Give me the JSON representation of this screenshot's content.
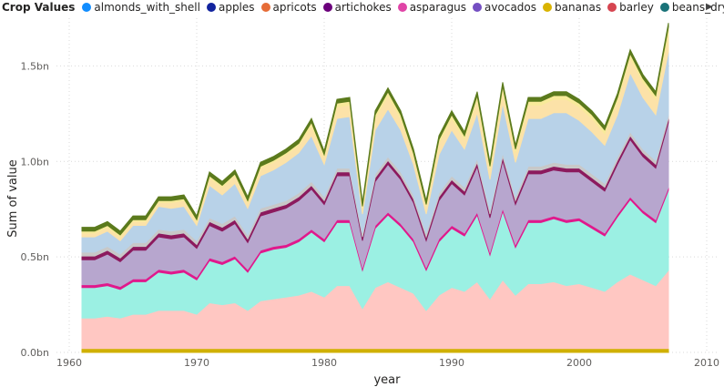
{
  "legend": {
    "title": "Crop Values",
    "items": [
      {
        "label": "almonds_with_shell",
        "color": "#118dff"
      },
      {
        "label": "apples",
        "color": "#12239e"
      },
      {
        "label": "apricots",
        "color": "#e66c37"
      },
      {
        "label": "artichokes",
        "color": "#6b007b"
      },
      {
        "label": "asparagus",
        "color": "#e044a7"
      },
      {
        "label": "avocados",
        "color": "#744ec2"
      },
      {
        "label": "bananas",
        "color": "#d9b300"
      },
      {
        "label": "barley",
        "color": "#d64550"
      },
      {
        "label": "beans_dry",
        "color": "#197278"
      }
    ],
    "more_icon": "triangle-right-icon"
  },
  "chart_data": {
    "type": "area",
    "stacked": true,
    "xlabel": "year",
    "ylabel": "Sum of value",
    "xlim": [
      1959,
      2011
    ],
    "ylim": [
      0,
      1.75
    ],
    "x_ticks": [
      "1960",
      "1970",
      "1980",
      "1990",
      "2000",
      "2010"
    ],
    "y_ticks": [
      "0.0bn",
      "0.5bn",
      "1.0bn",
      "1.5bn"
    ],
    "y_tick_values": [
      0,
      0.5,
      1.0,
      1.5
    ],
    "units": "bn",
    "grid": "dotted",
    "x": [
      1961,
      1962,
      1963,
      1964,
      1965,
      1966,
      1967,
      1968,
      1969,
      1970,
      1971,
      1972,
      1973,
      1974,
      1975,
      1976,
      1977,
      1978,
      1979,
      1980,
      1981,
      1982,
      1983,
      1984,
      1985,
      1986,
      1987,
      1988,
      1989,
      1990,
      1991,
      1992,
      1993,
      1994,
      1995,
      1996,
      1997,
      1998,
      1999,
      2000,
      2001,
      2002,
      2003,
      2004,
      2005,
      2006,
      2007
    ],
    "series": [
      {
        "fill": "#d0b000",
        "values": [
          0.02,
          0.02,
          0.02,
          0.02,
          0.02,
          0.02,
          0.02,
          0.02,
          0.02,
          0.02,
          0.02,
          0.02,
          0.02,
          0.02,
          0.02,
          0.02,
          0.02,
          0.02,
          0.02,
          0.02,
          0.02,
          0.02,
          0.02,
          0.02,
          0.02,
          0.02,
          0.02,
          0.02,
          0.02,
          0.02,
          0.02,
          0.02,
          0.02,
          0.02,
          0.02,
          0.02,
          0.02,
          0.02,
          0.02,
          0.02,
          0.02,
          0.02,
          0.02,
          0.02,
          0.02,
          0.02,
          0.02
        ]
      },
      {
        "fill": "#ffc7c2",
        "values": [
          0.16,
          0.16,
          0.17,
          0.16,
          0.18,
          0.18,
          0.2,
          0.2,
          0.2,
          0.18,
          0.24,
          0.23,
          0.24,
          0.2,
          0.25,
          0.26,
          0.27,
          0.28,
          0.3,
          0.27,
          0.33,
          0.33,
          0.21,
          0.32,
          0.35,
          0.32,
          0.29,
          0.2,
          0.28,
          0.32,
          0.3,
          0.35,
          0.26,
          0.36,
          0.28,
          0.34,
          0.34,
          0.35,
          0.33,
          0.34,
          0.32,
          0.3,
          0.35,
          0.39,
          0.36,
          0.33,
          0.41
        ]
      },
      {
        "fill": "#9bf0e3",
        "values": [
          0.16,
          0.16,
          0.16,
          0.15,
          0.17,
          0.17,
          0.2,
          0.19,
          0.2,
          0.18,
          0.22,
          0.21,
          0.23,
          0.2,
          0.25,
          0.26,
          0.26,
          0.28,
          0.31,
          0.29,
          0.33,
          0.33,
          0.2,
          0.31,
          0.35,
          0.32,
          0.27,
          0.21,
          0.28,
          0.31,
          0.29,
          0.35,
          0.23,
          0.36,
          0.25,
          0.32,
          0.32,
          0.33,
          0.33,
          0.33,
          0.31,
          0.29,
          0.34,
          0.39,
          0.35,
          0.33,
          0.42
        ]
      },
      {
        "fill": "#e0198c",
        "values": [
          0.015,
          0.015,
          0.015,
          0.015,
          0.015,
          0.015,
          0.015,
          0.015,
          0.015,
          0.015,
          0.015,
          0.015,
          0.015,
          0.015,
          0.015,
          0.015,
          0.015,
          0.015,
          0.015,
          0.015,
          0.015,
          0.015,
          0.015,
          0.015,
          0.015,
          0.015,
          0.015,
          0.015,
          0.015,
          0.015,
          0.015,
          0.015,
          0.015,
          0.015,
          0.015,
          0.015,
          0.015,
          0.015,
          0.015,
          0.015,
          0.015,
          0.015,
          0.015,
          0.015,
          0.015,
          0.015,
          0.015
        ]
      },
      {
        "fill": "#b7a6ce",
        "values": [
          0.13,
          0.13,
          0.15,
          0.13,
          0.15,
          0.15,
          0.17,
          0.17,
          0.17,
          0.15,
          0.17,
          0.16,
          0.17,
          0.14,
          0.18,
          0.18,
          0.19,
          0.2,
          0.21,
          0.18,
          0.23,
          0.23,
          0.14,
          0.23,
          0.25,
          0.23,
          0.19,
          0.14,
          0.2,
          0.22,
          0.2,
          0.24,
          0.18,
          0.25,
          0.21,
          0.24,
          0.24,
          0.24,
          0.25,
          0.24,
          0.23,
          0.22,
          0.26,
          0.3,
          0.28,
          0.27,
          0.34
        ]
      },
      {
        "fill": "#8c1a5e",
        "values": [
          0.02,
          0.02,
          0.02,
          0.02,
          0.02,
          0.02,
          0.02,
          0.02,
          0.02,
          0.02,
          0.02,
          0.02,
          0.02,
          0.02,
          0.02,
          0.02,
          0.02,
          0.02,
          0.02,
          0.02,
          0.02,
          0.02,
          0.02,
          0.02,
          0.02,
          0.02,
          0.02,
          0.02,
          0.02,
          0.02,
          0.02,
          0.02,
          0.02,
          0.02,
          0.02,
          0.02,
          0.02,
          0.02,
          0.02,
          0.02,
          0.02,
          0.02,
          0.02,
          0.02,
          0.02,
          0.02,
          0.02
        ]
      },
      {
        "fill": "#c8c8c8",
        "values": [
          0.02,
          0.02,
          0.02,
          0.02,
          0.02,
          0.02,
          0.02,
          0.02,
          0.02,
          0.02,
          0.02,
          0.02,
          0.02,
          0.02,
          0.02,
          0.02,
          0.02,
          0.02,
          0.02,
          0.02,
          0.02,
          0.02,
          0.02,
          0.02,
          0.02,
          0.02,
          0.02,
          0.02,
          0.02,
          0.02,
          0.02,
          0.02,
          0.02,
          0.02,
          0.02,
          0.02,
          0.02,
          0.02,
          0.02,
          0.02,
          0.02,
          0.02,
          0.02,
          0.02,
          0.02,
          0.02,
          0.02
        ]
      },
      {
        "fill": "#b8d2e8",
        "values": [
          0.08,
          0.08,
          0.08,
          0.07,
          0.09,
          0.09,
          0.12,
          0.12,
          0.12,
          0.08,
          0.17,
          0.15,
          0.17,
          0.14,
          0.17,
          0.18,
          0.2,
          0.21,
          0.24,
          0.17,
          0.26,
          0.27,
          0.1,
          0.23,
          0.25,
          0.22,
          0.16,
          0.1,
          0.2,
          0.24,
          0.2,
          0.24,
          0.16,
          0.26,
          0.18,
          0.25,
          0.25,
          0.26,
          0.27,
          0.23,
          0.22,
          0.2,
          0.22,
          0.31,
          0.27,
          0.24,
          0.33
        ]
      },
      {
        "fill": "#fce2a8",
        "values": [
          0.02,
          0.02,
          0.02,
          0.02,
          0.02,
          0.02,
          0.02,
          0.03,
          0.03,
          0.02,
          0.04,
          0.04,
          0.04,
          0.03,
          0.04,
          0.04,
          0.04,
          0.04,
          0.05,
          0.04,
          0.06,
          0.06,
          0.03,
          0.06,
          0.07,
          0.06,
          0.05,
          0.04,
          0.06,
          0.06,
          0.05,
          0.07,
          0.05,
          0.07,
          0.05,
          0.07,
          0.07,
          0.07,
          0.07,
          0.07,
          0.07,
          0.06,
          0.07,
          0.08,
          0.08,
          0.08,
          0.09
        ]
      },
      {
        "fill": "#f8ea9a",
        "values": [
          0.01,
          0.01,
          0.01,
          0.01,
          0.01,
          0.01,
          0.01,
          0.01,
          0.01,
          0.01,
          0.01,
          0.01,
          0.01,
          0.01,
          0.01,
          0.01,
          0.01,
          0.01,
          0.02,
          0.01,
          0.02,
          0.02,
          0.01,
          0.02,
          0.02,
          0.02,
          0.01,
          0.01,
          0.02,
          0.02,
          0.02,
          0.02,
          0.02,
          0.02,
          0.02,
          0.02,
          0.02,
          0.02,
          0.02,
          0.02,
          0.02,
          0.02,
          0.02,
          0.02,
          0.02,
          0.02,
          0.04
        ]
      },
      {
        "fill": "#5b7a1c",
        "values": [
          0.02,
          0.02,
          0.02,
          0.02,
          0.02,
          0.02,
          0.02,
          0.02,
          0.02,
          0.02,
          0.02,
          0.02,
          0.02,
          0.02,
          0.02,
          0.02,
          0.02,
          0.02,
          0.02,
          0.02,
          0.02,
          0.02,
          0.02,
          0.02,
          0.02,
          0.02,
          0.02,
          0.02,
          0.02,
          0.02,
          0.02,
          0.02,
          0.02,
          0.02,
          0.02,
          0.02,
          0.02,
          0.02,
          0.02,
          0.02,
          0.02,
          0.02,
          0.02,
          0.02,
          0.02,
          0.02,
          0.02
        ]
      }
    ]
  }
}
